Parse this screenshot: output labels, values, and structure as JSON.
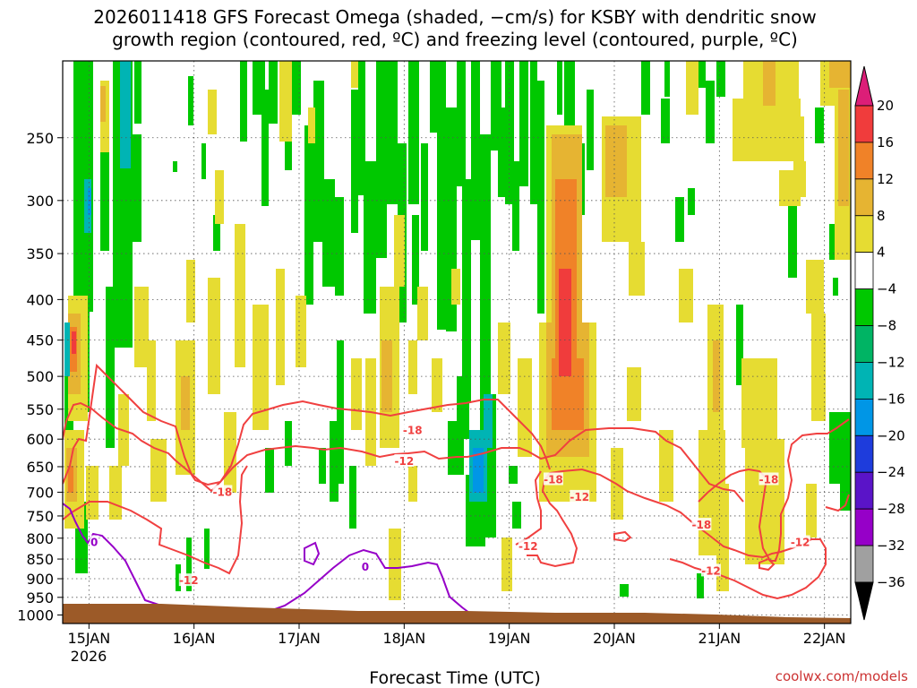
{
  "chart_data": {
    "type": "heatmap",
    "title_line1": "2026011418 GFS Forecast Omega (shaded, −cm/s) for KSBY with dendritic snow",
    "title_line2": "growth region (contoured, red, ºC) and freezing level (contoured, purple, ºC)",
    "xlabel": "Forecast Time (UTC)",
    "ylabel": "",
    "x_ticks": [
      "15JAN",
      "16JAN",
      "17JAN",
      "18JAN",
      "19JAN",
      "20JAN",
      "21JAN",
      "22JAN"
    ],
    "x_tick_year": "2026",
    "x_range_days": [
      14.75,
      22.25
    ],
    "y_ticks": [
      250,
      300,
      350,
      400,
      450,
      500,
      550,
      600,
      650,
      700,
      750,
      800,
      850,
      900,
      950,
      1000
    ],
    "y_range_mb": [
      200,
      1025
    ],
    "colorbar_levels": [
      20,
      16,
      12,
      8,
      4,
      -4,
      -8,
      -12,
      -16,
      -20,
      -24,
      -28,
      -32,
      -36
    ],
    "colorbar_colors": [
      "#dc1e78",
      "#f03c3c",
      "#f08228",
      "#e6b432",
      "#e6dc32",
      "#ffffff",
      "#00c800",
      "#00b464",
      "#00b4b4",
      "#0096e6",
      "#1e3cdc",
      "#5a14c8",
      "#9600c8",
      "#a0a0a0",
      "#000000"
    ],
    "contours": [
      {
        "name": "dendritic -12C",
        "color": "#f04040",
        "label": "-12"
      },
      {
        "name": "dendritic -18C",
        "color": "#f04040",
        "label": "-18"
      },
      {
        "name": "freezing 0C",
        "color": "#9600c8",
        "label": "0"
      }
    ],
    "contour_labels": [
      {
        "text": "-18",
        "day": 16.27,
        "mb": 700
      },
      {
        "text": "-18",
        "day": 18.08,
        "mb": 585
      },
      {
        "text": "-18",
        "day": 19.42,
        "mb": 675
      },
      {
        "text": "-18",
        "day": 20.83,
        "mb": 770
      },
      {
        "text": "-18",
        "day": 21.47,
        "mb": 675
      },
      {
        "text": "-12",
        "day": 15.95,
        "mb": 905
      },
      {
        "text": "-12",
        "day": 18.0,
        "mb": 640
      },
      {
        "text": "-12",
        "day": 19.18,
        "mb": 820
      },
      {
        "text": "-12",
        "day": 19.67,
        "mb": 710
      },
      {
        "text": "-12",
        "day": 20.92,
        "mb": 880
      },
      {
        "text": "-12",
        "day": 21.77,
        "mb": 810
      },
      {
        "text": "0",
        "day": 15.05,
        "mb": 810
      },
      {
        "text": "0",
        "day": 17.63,
        "mb": 870
      }
    ]
  },
  "footer": {
    "brand": "coolwx.com/models"
  }
}
